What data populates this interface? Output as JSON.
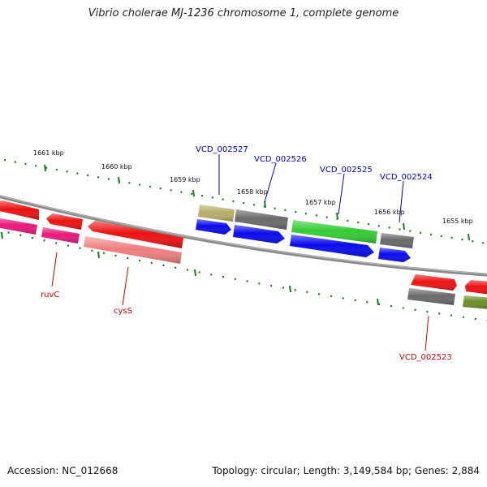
{
  "title": "Vibrio cholerae MJ-1236 chromosome 1, complete genome",
  "footer": {
    "accession": "Accession: NC_012668",
    "summary": "Topology: circular; Length: 3,149,584 bp; Genes: 2,884"
  },
  "ruler_ticks": [
    "1661 kbp",
    "1660 kbp",
    "1659 kbp",
    "1658 kbp",
    "1657 kbp",
    "1656 kbp",
    "1655 kbp"
  ],
  "gene_labels": [
    "VCD_002527",
    "VCD_002526",
    "VCD_002525",
    "VCD_002524",
    "VCD_002523",
    "ruvC",
    "cysS"
  ],
  "colors": {
    "forward_label": "#0000cc",
    "reverse_label": "#cc0000",
    "backbone": "#888888",
    "tick": "#1a7a1a"
  }
}
